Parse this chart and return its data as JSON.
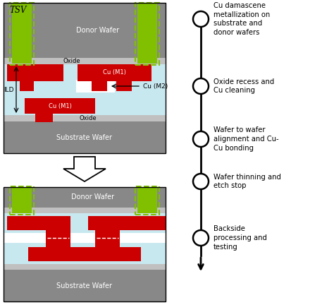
{
  "fig_width": 4.74,
  "fig_height": 4.32,
  "dpi": 100,
  "bg_color": "#ffffff",
  "colors": {
    "gray_dark": "#888888",
    "gray_substrate": "#888888",
    "light_blue": "#c8e8f0",
    "red": "#cc0000",
    "green_fill": "#80c000",
    "oxide_gray": "#c0c0c0",
    "white": "#ffffff",
    "black": "#000000",
    "bond_line": "#ffffff"
  },
  "process_steps": [
    "Cu damascene\nmetallization on\nsubstrate and\ndonor wafers",
    "Oxide recess and\nCu cleaning",
    "Wafer to wafer\nalignment and Cu-\nCu bonding",
    "Wafer thinning and\netch stop",
    "Backside\nprocessing and\ntesting"
  ]
}
